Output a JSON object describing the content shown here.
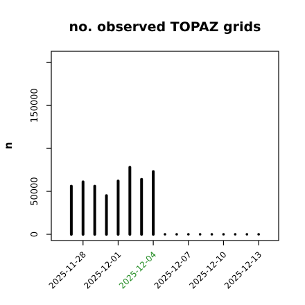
{
  "chart_data": {
    "type": "bar",
    "title": "no. observed TOPAZ grids",
    "ylabel": "n",
    "ylim": [
      0,
      205000
    ],
    "yticks": [
      0,
      50000,
      150000
    ],
    "yticks_unlabeled": [
      100000,
      200000
    ],
    "grid": false,
    "x_range": [
      "2025-11-26",
      "2025-12-14"
    ],
    "xticks": [
      {
        "date": "2025-11-28",
        "label": "2025-11-28",
        "color": "#000000"
      },
      {
        "date": "2025-12-01",
        "label": "2025-12-01",
        "color": "#000000"
      },
      {
        "date": "2025-12-04",
        "label": "2025-12-04",
        "color": "#228b22"
      },
      {
        "date": "2025-12-07",
        "label": "2025-12-07",
        "color": "#000000"
      },
      {
        "date": "2025-12-10",
        "label": "2025-12-10",
        "color": "#000000"
      },
      {
        "date": "2025-12-13",
        "label": "2025-12-13",
        "color": "#000000"
      }
    ],
    "dates": [
      "2025-11-27",
      "2025-11-28",
      "2025-11-29",
      "2025-11-30",
      "2025-12-01",
      "2025-12-02",
      "2025-12-03",
      "2025-12-04",
      "2025-12-05",
      "2025-12-06",
      "2025-12-07",
      "2025-12-08",
      "2025-12-09",
      "2025-12-10",
      "2025-12-11",
      "2025-12-12",
      "2025-12-13"
    ],
    "values": [
      56000,
      61000,
      56000,
      45000,
      62000,
      78000,
      64000,
      73000,
      0,
      0,
      0,
      0,
      0,
      0,
      0,
      0,
      0
    ],
    "bar_color": "#000000"
  }
}
